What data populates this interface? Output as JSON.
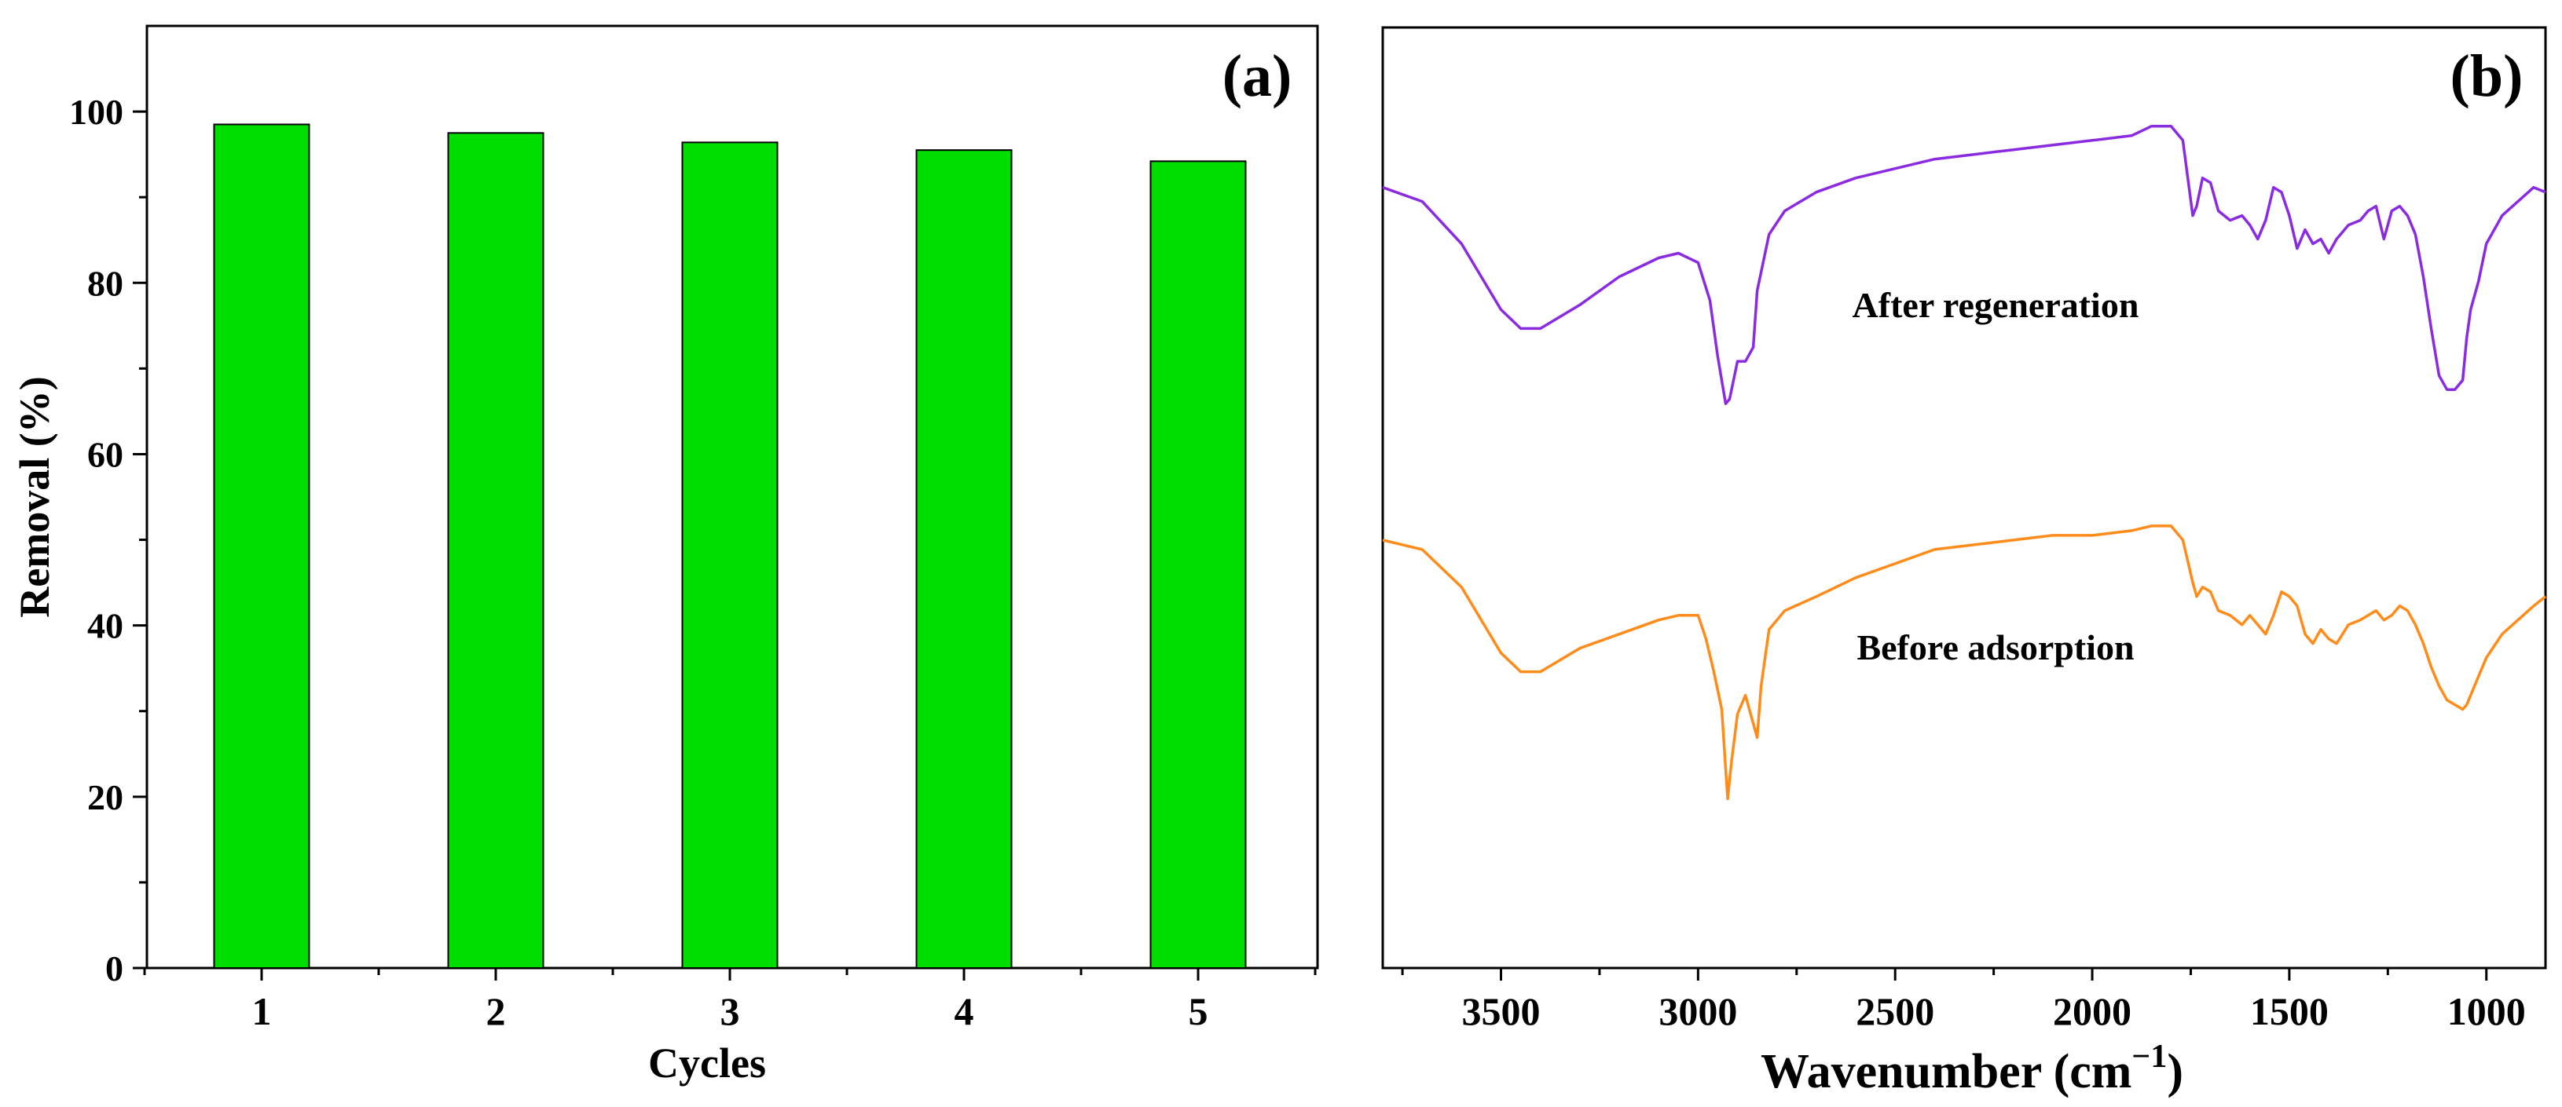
{
  "chart_data": [
    {
      "panel_label": "(a)",
      "type": "bar",
      "title": "",
      "xlabel": "Cycles",
      "ylabel": "Removal (%)",
      "categories": [
        "1",
        "2",
        "3",
        "4",
        "5"
      ],
      "values": [
        98.5,
        97.5,
        96.4,
        95.5,
        94.2
      ],
      "ylim": [
        0,
        110
      ],
      "yticks": [
        0,
        20,
        40,
        60,
        80,
        100
      ],
      "bar_color": "#00dd00",
      "grid": false
    },
    {
      "panel_label": "(b)",
      "type": "line",
      "title": "",
      "xlabel": "Wavenumber (cm",
      "xlabel_sup": "−1",
      "xlabel_end": ")",
      "ylabel": "",
      "xlim": [
        3800,
        850
      ],
      "xticks": [
        3500,
        3000,
        2500,
        2000,
        1500,
        1000
      ],
      "ylim": [
        0,
        100
      ],
      "grid": false,
      "series": [
        {
          "name": "After regeneration",
          "color": "#8a2be2",
          "x": [
            3800,
            3700,
            3600,
            3500,
            3450,
            3400,
            3300,
            3200,
            3100,
            3050,
            3000,
            2970,
            2950,
            2930,
            2920,
            2900,
            2880,
            2860,
            2850,
            2820,
            2780,
            2700,
            2600,
            2500,
            2400,
            2300,
            2200,
            2100,
            2000,
            1900,
            1850,
            1800,
            1770,
            1745,
            1735,
            1720,
            1700,
            1680,
            1650,
            1620,
            1600,
            1580,
            1560,
            1540,
            1520,
            1500,
            1480,
            1460,
            1440,
            1420,
            1400,
            1380,
            1350,
            1320,
            1300,
            1280,
            1260,
            1240,
            1220,
            1200,
            1180,
            1160,
            1140,
            1120,
            1100,
            1080,
            1060,
            1050,
            1040,
            1020,
            1000,
            960,
            920,
            880,
            850
          ],
          "y": [
            83.0,
            81.5,
            77.0,
            70.0,
            68.0,
            68.0,
            70.5,
            73.5,
            75.5,
            76.0,
            75.0,
            71.0,
            65.0,
            60.0,
            60.5,
            64.5,
            64.5,
            66.0,
            72.0,
            78.0,
            80.5,
            82.5,
            84.0,
            85.0,
            86.0,
            86.5,
            87.0,
            87.5,
            88.0,
            88.5,
            89.5,
            89.5,
            88.0,
            80.0,
            81.0,
            84.0,
            83.5,
            80.5,
            79.5,
            80.0,
            79.0,
            77.5,
            79.5,
            83.0,
            82.5,
            80.0,
            76.5,
            78.5,
            77.0,
            77.5,
            76.0,
            77.5,
            79.0,
            79.5,
            80.5,
            81.0,
            77.5,
            80.5,
            81.0,
            80.0,
            78.0,
            73.5,
            68.0,
            63.0,
            61.5,
            61.5,
            62.5,
            67.0,
            70.0,
            73.0,
            77.0,
            80.0,
            81.5,
            83.0,
            82.5
          ]
        },
        {
          "name": "Before adsorption",
          "color": "#ff8c1a",
          "x": [
            3800,
            3700,
            3600,
            3500,
            3450,
            3400,
            3300,
            3200,
            3100,
            3050,
            3000,
            2980,
            2960,
            2940,
            2925,
            2915,
            2900,
            2880,
            2860,
            2850,
            2840,
            2820,
            2780,
            2700,
            2600,
            2500,
            2400,
            2300,
            2200,
            2100,
            2000,
            1900,
            1850,
            1800,
            1770,
            1745,
            1735,
            1720,
            1700,
            1680,
            1650,
            1620,
            1600,
            1580,
            1560,
            1540,
            1520,
            1500,
            1480,
            1460,
            1440,
            1420,
            1400,
            1380,
            1350,
            1320,
            1300,
            1280,
            1260,
            1240,
            1220,
            1200,
            1180,
            1160,
            1140,
            1120,
            1100,
            1080,
            1060,
            1050,
            1040,
            1020,
            1000,
            960,
            920,
            880,
            850
          ],
          "y": [
            45.5,
            44.5,
            40.5,
            33.5,
            31.5,
            31.5,
            34.0,
            35.5,
            37.0,
            37.5,
            37.5,
            35.0,
            31.5,
            27.5,
            18.0,
            22.0,
            27.0,
            29.0,
            26.0,
            24.5,
            30.0,
            36.0,
            38.0,
            39.5,
            41.5,
            43.0,
            44.5,
            45.0,
            45.5,
            46.0,
            46.0,
            46.5,
            47.0,
            47.0,
            45.5,
            41.0,
            39.5,
            40.5,
            40.0,
            38.0,
            37.5,
            36.5,
            37.5,
            36.5,
            35.5,
            37.5,
            40.0,
            39.5,
            38.5,
            35.5,
            34.5,
            36.0,
            35.0,
            34.5,
            36.5,
            37.0,
            37.5,
            38.0,
            37.0,
            37.5,
            38.5,
            38.0,
            36.5,
            34.5,
            32.0,
            30.0,
            28.5,
            28.0,
            27.5,
            28.0,
            29.0,
            31.0,
            33.0,
            35.5,
            37.0,
            38.5,
            39.5
          ]
        }
      ]
    }
  ]
}
